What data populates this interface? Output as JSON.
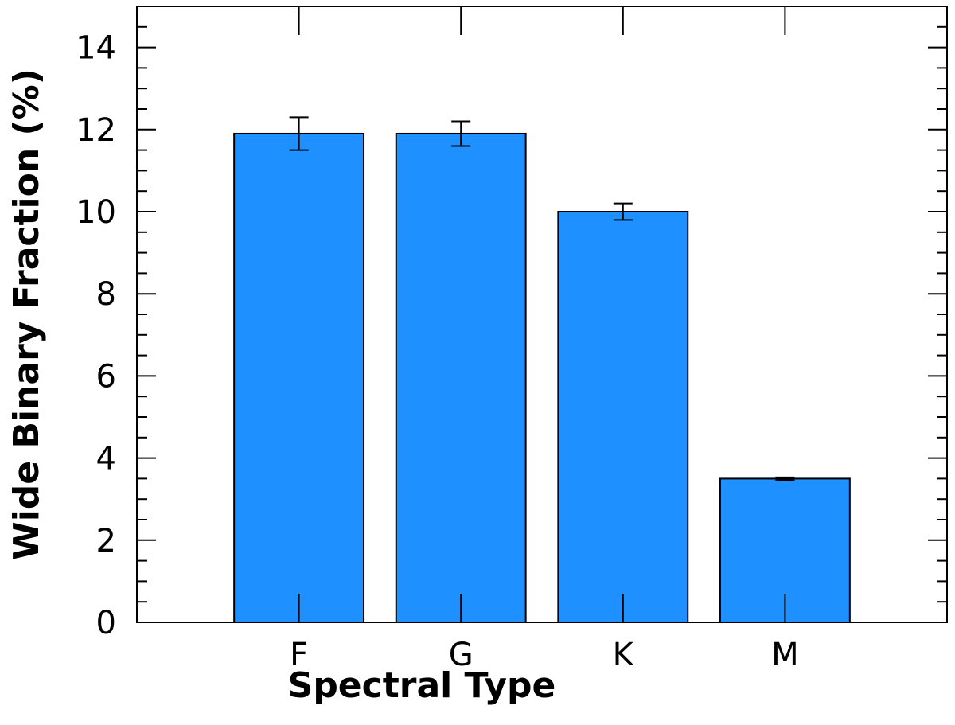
{
  "chart_data": {
    "type": "bar",
    "xlabel": "Spectral Type",
    "ylabel": "Wide Binary Fraction (%)",
    "categories": [
      "F",
      "G",
      "K",
      "M"
    ],
    "values": [
      11.9,
      11.9,
      10.0,
      3.5
    ],
    "errors": [
      0.4,
      0.3,
      0.2,
      0.03
    ],
    "color": "#1e90ff",
    "ylim": [
      0,
      15
    ],
    "yticks": [
      0,
      2,
      4,
      6,
      8,
      10,
      12,
      14
    ],
    "minor_yticks": [
      0.5,
      1,
      1.5,
      2.5,
      3,
      3.5,
      4.5,
      5,
      5.5,
      6.5,
      7,
      7.5,
      8.5,
      9,
      9.5,
      10.5,
      11,
      11.5,
      12.5,
      13,
      13.5,
      14.5
    ]
  }
}
